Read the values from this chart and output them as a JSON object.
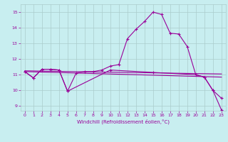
{
  "xlabel": "Windchill (Refroidissement éolien,°C)",
  "background_color": "#c8eef0",
  "grid_color": "#aacccc",
  "line_color": "#990099",
  "xlim": [
    -0.5,
    23.5
  ],
  "ylim": [
    8.7,
    15.5
  ],
  "yticks": [
    9,
    10,
    11,
    12,
    13,
    14,
    15
  ],
  "xticks": [
    0,
    1,
    2,
    3,
    4,
    5,
    6,
    7,
    8,
    9,
    10,
    11,
    12,
    13,
    14,
    15,
    16,
    17,
    18,
    19,
    20,
    21,
    22,
    23
  ],
  "curve1_x": [
    0,
    1,
    2,
    3,
    4,
    5,
    6,
    7,
    8,
    9,
    10,
    11,
    12,
    13,
    14,
    15,
    16,
    17,
    18,
    19,
    20,
    21,
    22,
    23
  ],
  "curve1_y": [
    11.2,
    10.8,
    11.35,
    11.35,
    11.3,
    9.95,
    11.1,
    11.2,
    11.2,
    11.3,
    11.55,
    11.65,
    13.3,
    13.9,
    14.4,
    15.0,
    14.85,
    13.65,
    13.6,
    12.8,
    11.0,
    10.85,
    10.0,
    9.5
  ],
  "curve2_x": [
    0,
    1,
    2,
    3,
    4,
    5,
    10,
    15,
    20,
    21,
    22,
    23
  ],
  "curve2_y": [
    11.2,
    10.8,
    11.35,
    11.35,
    11.3,
    9.95,
    11.3,
    11.15,
    11.0,
    10.85,
    10.0,
    8.75
  ],
  "line1_x": [
    0,
    23
  ],
  "line1_y": [
    11.25,
    11.05
  ],
  "line2_x": [
    0,
    23
  ],
  "line2_y": [
    11.2,
    10.85
  ]
}
